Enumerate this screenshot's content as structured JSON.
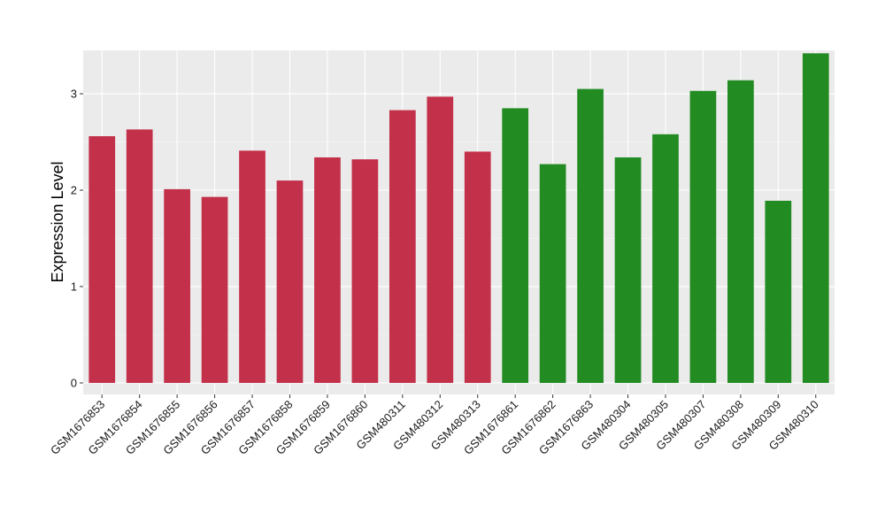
{
  "chart_data": {
    "type": "bar",
    "title": "",
    "xlabel": "",
    "ylabel": "Expression Level",
    "ylim": [
      -0.12,
      3.45
    ],
    "yticks": [
      0,
      1,
      2,
      3
    ],
    "grid": true,
    "legend": "none",
    "categories": [
      "GSM1676853",
      "GSM1676854",
      "GSM1676855",
      "GSM1676856",
      "GSM1676857",
      "GSM1676858",
      "GSM1676859",
      "GSM1676860",
      "GSM480311",
      "GSM480312",
      "GSM480313",
      "GSM1676861",
      "GSM1676862",
      "GSM1676863",
      "GSM480304",
      "GSM480305",
      "GSM480307",
      "GSM480308",
      "GSM480309",
      "GSM480310"
    ],
    "values": [
      2.56,
      2.63,
      2.01,
      1.93,
      2.41,
      2.1,
      2.34,
      2.32,
      2.83,
      2.97,
      2.4,
      2.85,
      2.27,
      3.05,
      2.34,
      2.58,
      3.03,
      3.14,
      1.89,
      3.42
    ],
    "bar_colors": [
      "#C3304A",
      "#C3304A",
      "#C3304A",
      "#C3304A",
      "#C3304A",
      "#C3304A",
      "#C3304A",
      "#C3304A",
      "#C3304A",
      "#C3304A",
      "#C3304A",
      "#228B22",
      "#228B22",
      "#228B22",
      "#228B22",
      "#228B22",
      "#228B22",
      "#228B22",
      "#228B22",
      "#228B22"
    ]
  },
  "colors": {
    "panel_background": "#EBEBEB",
    "grid_major": "#FFFFFF",
    "grid_minor": "#F5F5F5",
    "axis_ticks": "#333333"
  }
}
